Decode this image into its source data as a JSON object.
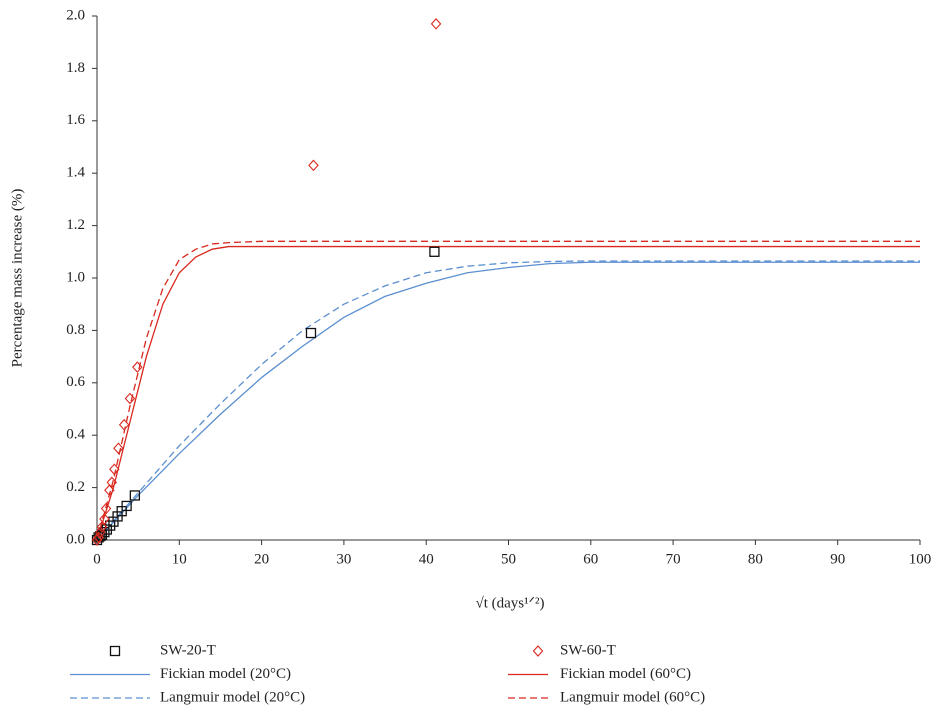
{
  "chart_data": {
    "type": "scatter",
    "xlabel": "√t (days¹ᐟ²)",
    "ylabel": "Percentage mass increase (%)",
    "xlim": [
      0,
      100
    ],
    "ylim": [
      0,
      2.0
    ],
    "xticks": [
      0,
      10,
      20,
      30,
      40,
      50,
      60,
      70,
      80,
      90,
      100
    ],
    "yticks": [
      {
        "value": 0,
        "label": "0.0"
      },
      {
        "value": 0.2,
        "label": "0.2"
      },
      {
        "value": 0.4,
        "label": "0.4"
      },
      {
        "value": 0.6,
        "label": "0.6"
      },
      {
        "value": 0.8,
        "label": "0.8"
      },
      {
        "value": 1.0,
        "label": "1.0"
      },
      {
        "value": 1.2,
        "label": "1.2"
      },
      {
        "value": 1.4,
        "label": "1.4"
      },
      {
        "value": 1.6,
        "label": "1.6"
      },
      {
        "value": 1.8,
        "label": "1.8"
      },
      {
        "value": 2.0,
        "label": "2.0"
      }
    ],
    "grid": false,
    "legend": "bottom",
    "series": [
      {
        "name": "SW-20-T",
        "color": "#111111",
        "marker": "square",
        "x": [
          0,
          0.2,
          0.4,
          0.6,
          0.9,
          1.2,
          1.6,
          2.0,
          2.5,
          3.0,
          3.6,
          4.6,
          26,
          41
        ],
        "values": [
          0,
          0.01,
          0.015,
          0.02,
          0.03,
          0.04,
          0.055,
          0.07,
          0.09,
          0.11,
          0.13,
          0.17,
          0.79,
          1.1
        ]
      },
      {
        "name": "SW-60-T",
        "color": "#d9281e",
        "marker": "diamond",
        "x": [
          0,
          0.2,
          0.4,
          0.6,
          0.9,
          1.1,
          1.5,
          1.8,
          2.1,
          2.6,
          3.3,
          4.0,
          4.9,
          26.3,
          41.2
        ],
        "values": [
          0,
          0.01,
          0.03,
          0.05,
          0.08,
          0.12,
          0.19,
          0.22,
          0.27,
          0.35,
          0.44,
          0.54,
          0.66,
          1.43,
          1.97
        ]
      },
      {
        "name": "Fickian model (20°C)",
        "color": "#5b8fd0",
        "linestyle": "solid",
        "x": [
          0,
          5,
          10,
          15,
          20,
          25,
          30,
          35,
          40,
          45,
          50,
          55,
          60,
          70,
          80,
          90,
          100
        ],
        "values": [
          0,
          0.17,
          0.33,
          0.48,
          0.62,
          0.74,
          0.85,
          0.93,
          0.98,
          1.02,
          1.04,
          1.055,
          1.06,
          1.06,
          1.06,
          1.06,
          1.06
        ]
      },
      {
        "name": "Fickian model (60°C)",
        "color": "#d9281e",
        "linestyle": "solid",
        "x": [
          0,
          2,
          4,
          6,
          8,
          10,
          12,
          14,
          16,
          20,
          100
        ],
        "values": [
          0,
          0.2,
          0.45,
          0.7,
          0.9,
          1.02,
          1.08,
          1.11,
          1.12,
          1.12,
          1.12
        ]
      },
      {
        "name": "Langmuir model (20°C)",
        "color": "#5b8fd0",
        "linestyle": "dashed",
        "x": [
          0,
          5,
          10,
          15,
          20,
          25,
          30,
          35,
          40,
          45,
          50,
          55,
          60,
          70,
          80,
          90,
          100
        ],
        "values": [
          0,
          0.18,
          0.36,
          0.52,
          0.67,
          0.8,
          0.9,
          0.97,
          1.02,
          1.045,
          1.058,
          1.063,
          1.065,
          1.065,
          1.065,
          1.065,
          1.065
        ]
      },
      {
        "name": "Langmuir model (60°C)",
        "color": "#d9281e",
        "linestyle": "dashed",
        "x": [
          0,
          2,
          4,
          6,
          8,
          10,
          12,
          14,
          16,
          20,
          100
        ],
        "values": [
          0,
          0.23,
          0.51,
          0.77,
          0.96,
          1.07,
          1.11,
          1.13,
          1.135,
          1.14,
          1.14
        ]
      }
    ]
  }
}
